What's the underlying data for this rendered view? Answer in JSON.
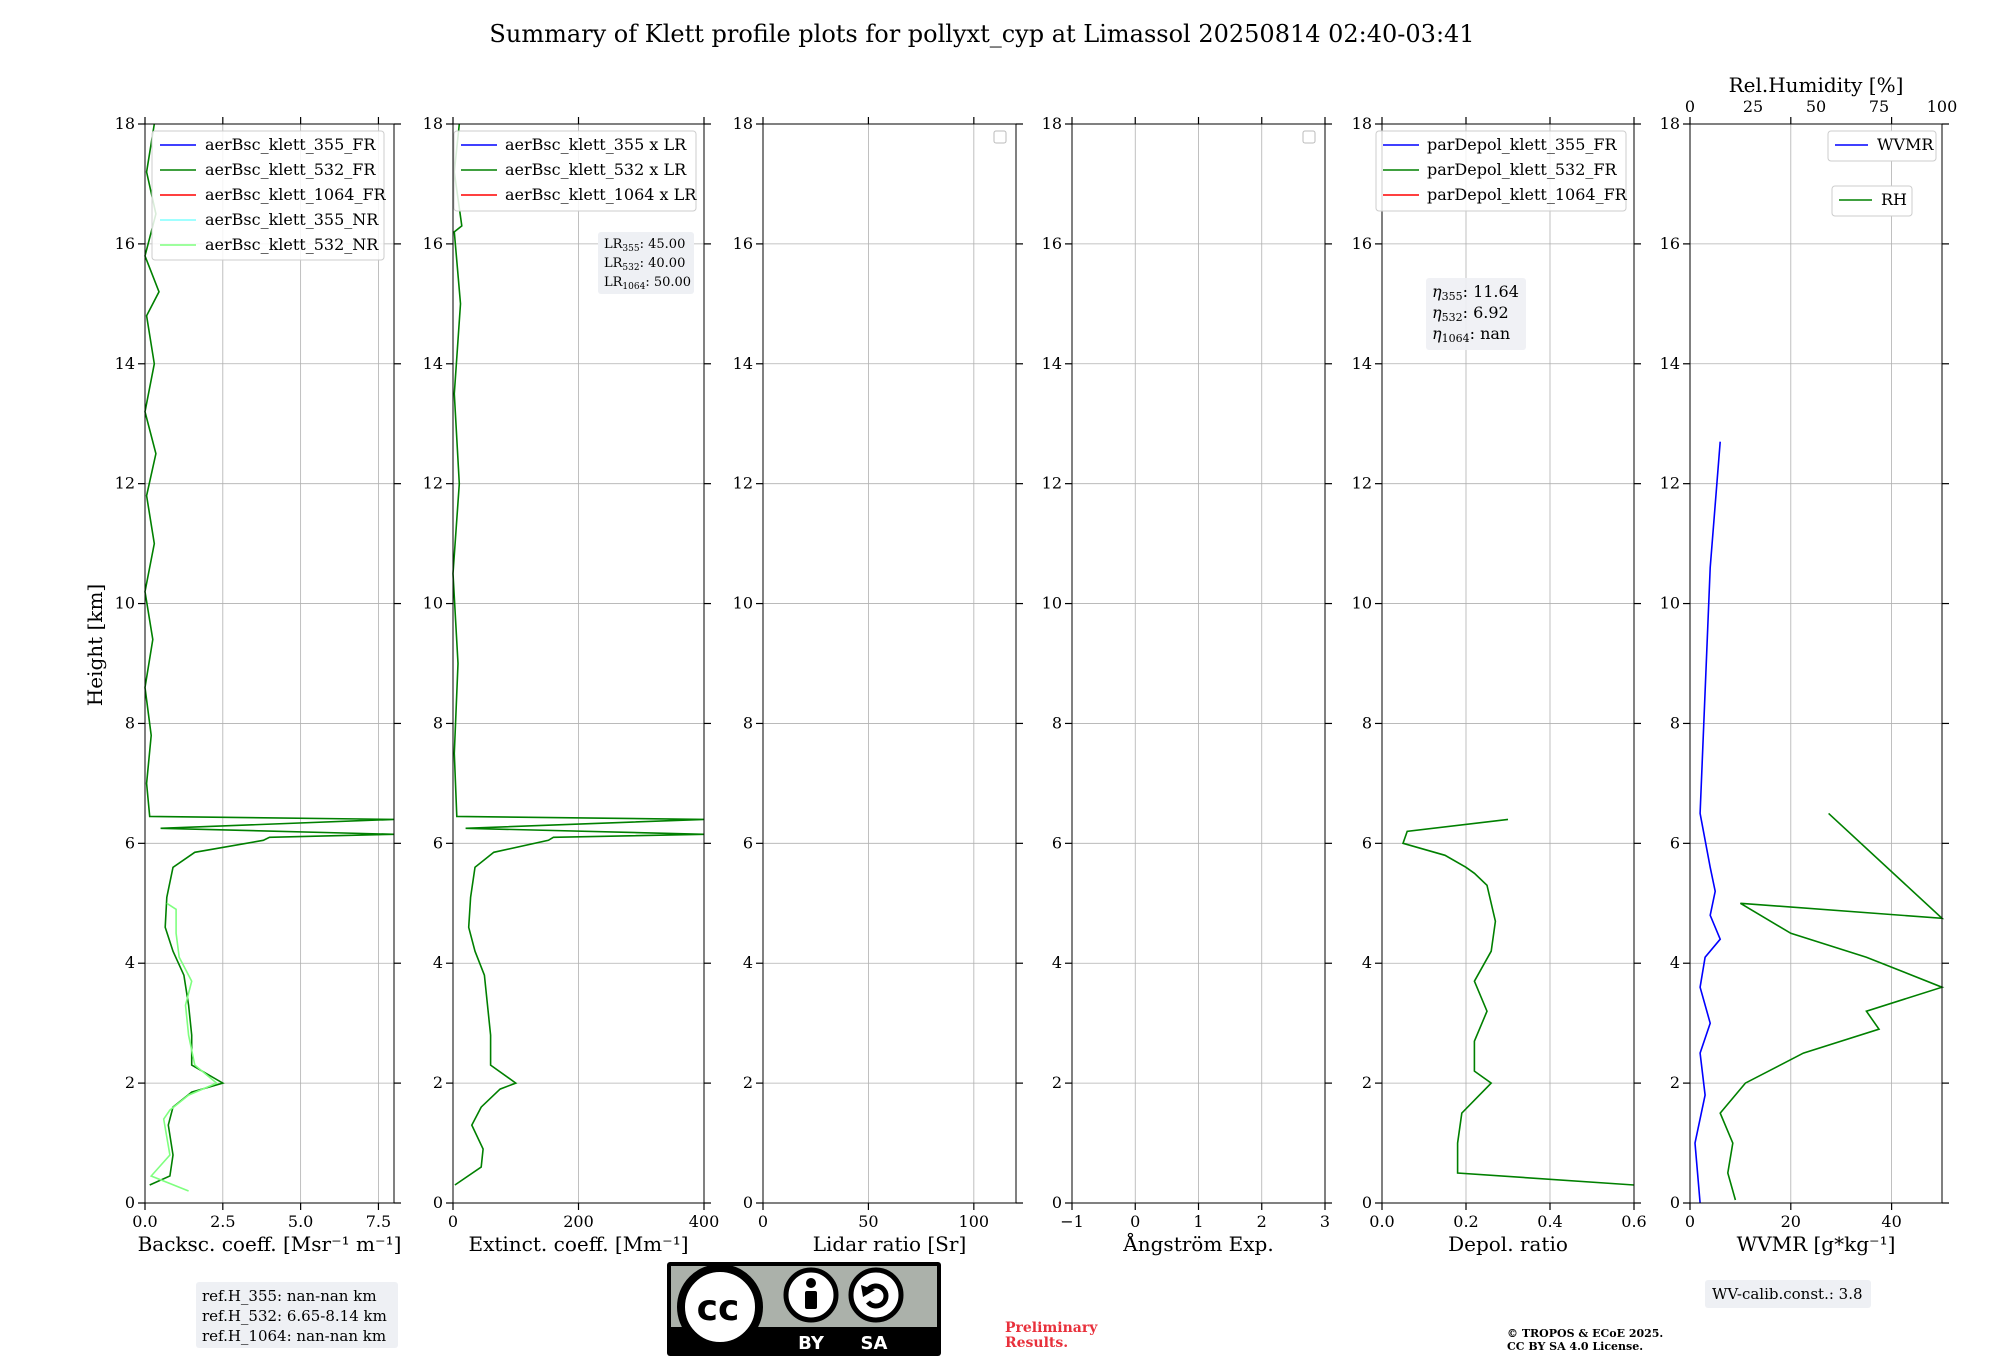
{
  "title": "Summary of Klett profile plots for pollyxt_cyp at Limassol 20250814 02:40-03:41",
  "ylabel": "Height [km]",
  "y_ticks": [
    "0",
    "2",
    "4",
    "6",
    "8",
    "10",
    "12",
    "14",
    "16",
    "18"
  ],
  "panels": {
    "bsc": {
      "xlabel": "Backsc. coeff. [Msr⁻¹ m⁻¹]",
      "xlim": [
        0,
        8
      ],
      "xticks": [
        0,
        2.5,
        5.0,
        7.5
      ],
      "xticklabels": [
        "0.0",
        "2.5",
        "5.0",
        "7.5"
      ],
      "legend": [
        "aerBsc_klett_355_FR",
        "aerBsc_klett_532_FR",
        "aerBsc_klett_1064_FR",
        "aerBsc_klett_355_NR",
        "aerBsc_klett_532_NR"
      ],
      "ref_lines": [
        "ref.H_355: nan-nan km",
        "ref.H_532: 6.65-8.14 km",
        "ref.H_1064: nan-nan km"
      ]
    },
    "ext": {
      "xlabel": "Extinct. coeff. [Mm⁻¹]",
      "xlim": [
        0,
        400
      ],
      "xticks": [
        0,
        200,
        400
      ],
      "xticklabels": [
        "0",
        "200",
        "400"
      ],
      "legend": [
        "aerBsc_klett_355 x LR",
        "aerBsc_klett_532 x LR",
        "aerBsc_klett_1064 x LR"
      ],
      "lr_notes": [
        "LR",
        "355",
        ": 45.00",
        "LR",
        "532",
        ": 40.00",
        "LR",
        "1064",
        ": 50.00"
      ]
    },
    "lr": {
      "xlabel": "Lidar ratio [Sr]",
      "xlim": [
        0,
        120
      ],
      "xticks": [
        0,
        50,
        100
      ],
      "xticklabels": [
        "0",
        "50",
        "100"
      ]
    },
    "ae": {
      "xlabel": "Ångström Exp.",
      "xlim": [
        -1,
        3
      ],
      "xticks": [
        -1,
        0,
        1,
        2,
        3
      ],
      "xticklabels": [
        "−1",
        "0",
        "1",
        "2",
        "3"
      ]
    },
    "dep": {
      "xlabel": "Depol. ratio",
      "xlim": [
        0,
        0.6
      ],
      "xticks": [
        0,
        0.2,
        0.4,
        0.6
      ],
      "xticklabels": [
        "0.0",
        "0.2",
        "0.4",
        "0.6"
      ],
      "legend": [
        "parDepol_klett_355_FR",
        "parDepol_klett_532_FR",
        "parDepol_klett_1064_FR"
      ],
      "eta": [
        "η",
        "355",
        ": 11.64",
        "η",
        "532",
        ": 6.92",
        "η",
        "1064",
        ": nan"
      ]
    },
    "wv": {
      "xlabel": "WVMR [g*kg⁻¹]",
      "xlim": [
        0,
        50
      ],
      "xticks": [
        0,
        20,
        40
      ],
      "xticklabels": [
        "0",
        "20",
        "40"
      ],
      "top_label": "Rel.Humidity [%]",
      "top_ticks": [
        0,
        25,
        50,
        75,
        100
      ],
      "top_ticklabels": [
        "0",
        "25",
        "50",
        "75",
        "100"
      ],
      "legend_wvmr": "WVMR",
      "legend_rh": "RH",
      "calib_note": "WV-calib.const.: 3.8"
    }
  },
  "license": {
    "cc": "cc",
    "by": "BY",
    "sa": "SA"
  },
  "preliminary": [
    "Preliminary",
    "Results."
  ],
  "copyright": [
    "© TROPOS & ECoE 2025.",
    "CC BY SA 4.0 License."
  ],
  "colors": {
    "c355": "#0000ff",
    "c532": "#008000",
    "c1064": "#ff0000",
    "c355nr": "#80ffff",
    "c532nr": "#7fff7f",
    "rh": "#008000",
    "wvmr": "#0000ff"
  },
  "chart_data": [
    {
      "type": "line",
      "panel": "bsc",
      "units": "Msr-1 m-1",
      "y_units": "km",
      "ylim": [
        0,
        18
      ],
      "series": [
        {
          "name": "aerBsc_klett_532_FR",
          "points": [
            [
              0.15,
              0.3
            ],
            [
              0.8,
              0.45
            ],
            [
              0.9,
              0.8
            ],
            [
              0.75,
              1.3
            ],
            [
              0.9,
              1.6
            ],
            [
              1.5,
              1.85
            ],
            [
              2.5,
              2.0
            ],
            [
              1.5,
              2.3
            ],
            [
              1.5,
              2.8
            ],
            [
              1.4,
              3.3
            ],
            [
              1.25,
              3.8
            ],
            [
              0.9,
              4.2
            ],
            [
              0.65,
              4.6
            ],
            [
              0.7,
              5.1
            ],
            [
              0.9,
              5.6
            ],
            [
              1.6,
              5.85
            ],
            [
              3.8,
              6.05
            ],
            [
              4.0,
              6.1
            ],
            [
              8.0,
              6.15
            ],
            [
              0.5,
              6.25
            ],
            [
              8.0,
              6.4
            ],
            [
              0.15,
              6.45
            ],
            [
              0.05,
              7.0
            ],
            [
              0.2,
              7.8
            ],
            [
              0.0,
              8.6
            ],
            [
              0.25,
              9.4
            ],
            [
              0.0,
              10.2
            ],
            [
              0.3,
              11.0
            ],
            [
              0.05,
              11.8
            ],
            [
              0.35,
              12.5
            ],
            [
              0.0,
              13.2
            ],
            [
              0.3,
              14.0
            ],
            [
              0.05,
              14.8
            ],
            [
              0.45,
              15.2
            ],
            [
              0.0,
              15.8
            ],
            [
              0.35,
              16.5
            ],
            [
              0.05,
              17.2
            ],
            [
              0.3,
              18.0
            ]
          ]
        },
        {
          "name": "aerBsc_klett_532_NR",
          "points": [
            [
              1.4,
              0.2
            ],
            [
              0.2,
              0.45
            ],
            [
              0.8,
              0.8
            ],
            [
              0.6,
              1.4
            ],
            [
              0.8,
              1.55
            ],
            [
              1.4,
              1.8
            ],
            [
              2.3,
              2.0
            ],
            [
              1.6,
              2.3
            ],
            [
              1.4,
              2.8
            ],
            [
              1.3,
              3.3
            ],
            [
              1.5,
              3.7
            ],
            [
              1.1,
              4.1
            ],
            [
              1.0,
              4.5
            ],
            [
              1.0,
              4.9
            ],
            [
              0.7,
              5.0
            ]
          ]
        }
      ]
    },
    {
      "type": "line",
      "panel": "ext",
      "units": "Mm-1",
      "y_units": "km",
      "ylim": [
        0,
        18
      ],
      "series": [
        {
          "name": "aerBsc_klett_532 x LR",
          "points": [
            [
              3,
              0.3
            ],
            [
              45,
              0.6
            ],
            [
              48,
              0.9
            ],
            [
              30,
              1.3
            ],
            [
              45,
              1.6
            ],
            [
              75,
              1.9
            ],
            [
              100,
              2.0
            ],
            [
              60,
              2.3
            ],
            [
              60,
              2.8
            ],
            [
              55,
              3.3
            ],
            [
              50,
              3.8
            ],
            [
              35,
              4.2
            ],
            [
              25,
              4.6
            ],
            [
              28,
              5.1
            ],
            [
              35,
              5.6
            ],
            [
              65,
              5.85
            ],
            [
              152,
              6.05
            ],
            [
              160,
              6.1
            ],
            [
              400,
              6.15
            ],
            [
              20,
              6.25
            ],
            [
              400,
              6.4
            ],
            [
              6,
              6.45
            ],
            [
              2,
              7.5
            ],
            [
              8,
              9.0
            ],
            [
              0,
              10.5
            ],
            [
              10,
              12.0
            ],
            [
              2,
              13.5
            ],
            [
              12,
              15.0
            ],
            [
              2,
              16.2
            ],
            [
              14,
              16.3
            ],
            [
              2,
              17.2
            ],
            [
              10,
              18.0
            ]
          ]
        }
      ]
    },
    {
      "type": "line",
      "panel": "lr",
      "series": []
    },
    {
      "type": "line",
      "panel": "ae",
      "series": []
    },
    {
      "type": "line",
      "panel": "dep",
      "y_units": "km",
      "ylim": [
        0,
        18
      ],
      "series": [
        {
          "name": "parDepol_klett_532_FR",
          "points": [
            [
              0.6,
              0.3
            ],
            [
              0.18,
              0.5
            ],
            [
              0.18,
              1.0
            ],
            [
              0.19,
              1.5
            ],
            [
              0.26,
              2.0
            ],
            [
              0.22,
              2.2
            ],
            [
              0.22,
              2.7
            ],
            [
              0.25,
              3.2
            ],
            [
              0.22,
              3.7
            ],
            [
              0.26,
              4.2
            ],
            [
              0.27,
              4.7
            ],
            [
              0.25,
              5.3
            ],
            [
              0.22,
              5.5
            ],
            [
              0.2,
              5.6
            ],
            [
              0.15,
              5.8
            ],
            [
              0.05,
              6.0
            ],
            [
              0.06,
              6.2
            ],
            [
              0.3,
              6.4
            ]
          ]
        }
      ]
    },
    {
      "type": "line",
      "panel": "wv",
      "units": "g*kg-1",
      "y_units": "km",
      "ylim": [
        0,
        18
      ],
      "series": [
        {
          "name": "WVMR",
          "points": [
            [
              2,
              0.0
            ],
            [
              1,
              1.0
            ],
            [
              3,
              1.8
            ],
            [
              2,
              2.5
            ],
            [
              4,
              3.0
            ],
            [
              2,
              3.6
            ],
            [
              3,
              4.1
            ],
            [
              6,
              4.4
            ],
            [
              4,
              4.8
            ],
            [
              5,
              5.2
            ],
            [
              4,
              5.6
            ],
            [
              2,
              6.5
            ],
            [
              4,
              10.6
            ],
            [
              6,
              12.7
            ]
          ]
        },
        {
          "name": "RH",
          "x_units": "%",
          "points": [
            [
              18,
              0.05
            ],
            [
              15,
              0.5
            ],
            [
              17,
              1.0
            ],
            [
              12,
              1.5
            ],
            [
              22,
              2.0
            ],
            [
              45,
              2.5
            ],
            [
              75,
              2.9
            ],
            [
              70,
              3.2
            ],
            [
              100,
              3.6
            ],
            [
              70,
              4.1
            ],
            [
              40,
              4.5
            ],
            [
              20,
              5.0
            ],
            [
              100,
              4.75
            ],
            [
              55,
              6.5
            ]
          ]
        }
      ]
    }
  ]
}
